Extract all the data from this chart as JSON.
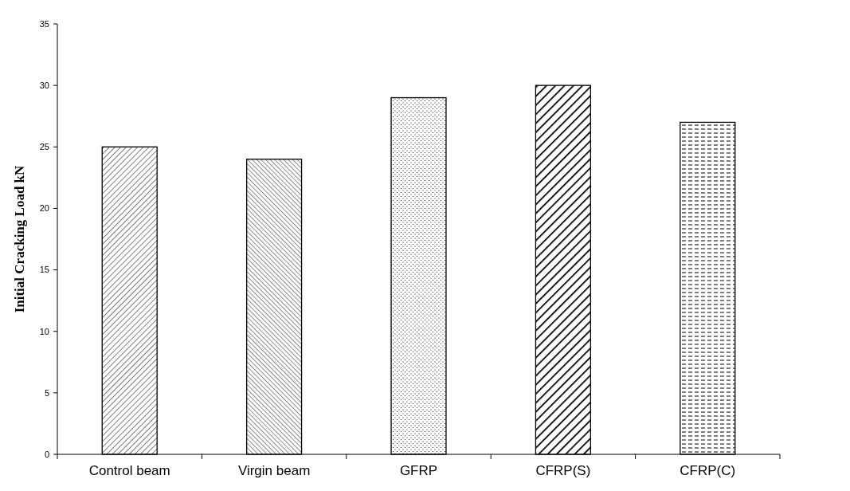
{
  "chart_data": {
    "type": "bar",
    "ylabel": "Initial Cracking Load kN",
    "categories": [
      "Control beam",
      "Virgin beam",
      "GFRP",
      "CFRP(S)",
      "CFRP(C)"
    ],
    "values": [
      25,
      24,
      29,
      30,
      27
    ],
    "ylim": [
      0,
      35
    ],
    "yticks": [
      0,
      5,
      10,
      15,
      20,
      25,
      30,
      35
    ],
    "grid": false
  }
}
